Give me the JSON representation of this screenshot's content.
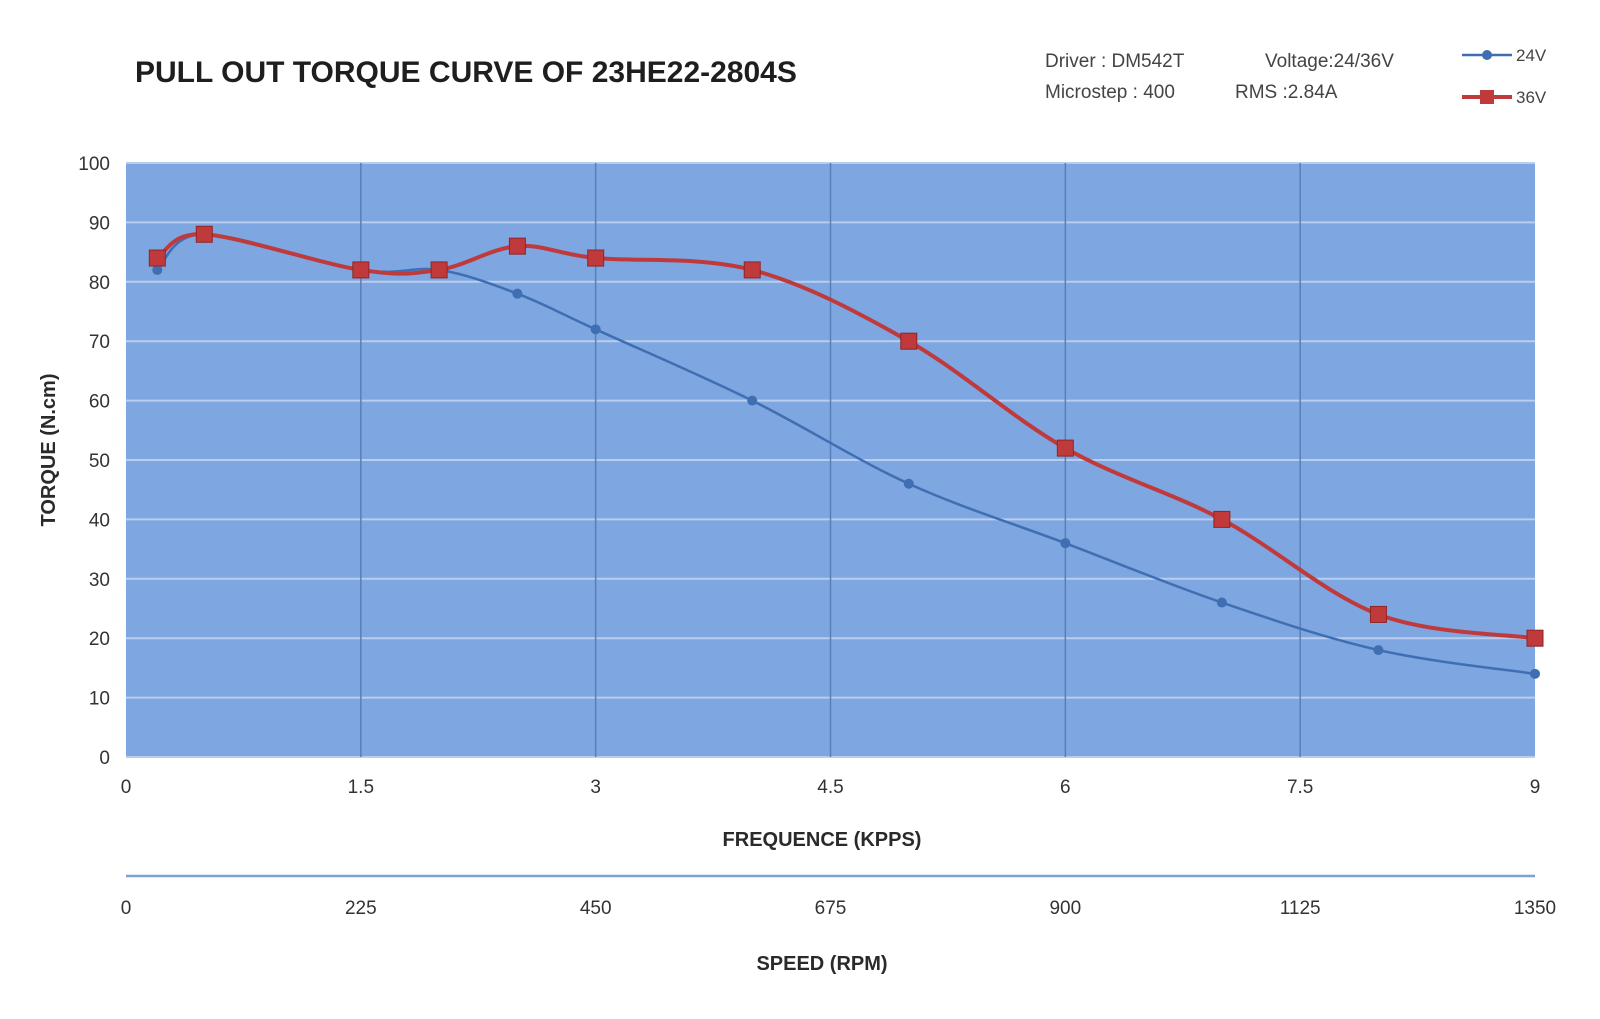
{
  "chart_data": {
    "type": "line",
    "title": "PULL OUT TORQUE CURVE OF 23HE22-2804S",
    "info": {
      "driver": "Driver : DM542T",
      "voltage": "Voltage:24/36V",
      "microstep": "Microstep : 400",
      "rms": "RMS :2.84A"
    },
    "xlabel": "FREQUENCE (KPPS)",
    "x2label": "SPEED (RPM)",
    "ylabel": "TORQUE (N.cm)",
    "xlim": [
      0,
      9
    ],
    "ylim": [
      0,
      100
    ],
    "x_ticks": [
      "0",
      "1.5",
      "3",
      "4.5",
      "6",
      "7.5",
      "9"
    ],
    "x2_ticks": [
      "0",
      "225",
      "450",
      "675",
      "900",
      "1125",
      "1350"
    ],
    "y_ticks": [
      "0",
      "10",
      "20",
      "30",
      "40",
      "50",
      "60",
      "70",
      "80",
      "90",
      "100"
    ],
    "grid": true,
    "legend_position": "top-right",
    "series": [
      {
        "name": "24V",
        "color": "#3f6fb2",
        "marker": "circle",
        "points": [
          [
            0.2,
            82
          ],
          [
            0.5,
            88
          ],
          [
            1.5,
            82
          ],
          [
            2.0,
            82
          ],
          [
            2.5,
            78
          ],
          [
            3.0,
            72
          ],
          [
            4.0,
            60
          ],
          [
            5.0,
            46
          ],
          [
            6.0,
            36
          ],
          [
            7.0,
            26
          ],
          [
            8.0,
            18
          ],
          [
            9.0,
            14
          ]
        ]
      },
      {
        "name": "36V",
        "color": "#c0393b",
        "marker": "square",
        "points": [
          [
            0.2,
            84
          ],
          [
            0.5,
            88
          ],
          [
            1.5,
            82
          ],
          [
            2.0,
            82
          ],
          [
            2.5,
            86
          ],
          [
            3.0,
            84
          ],
          [
            4.0,
            82
          ],
          [
            5.0,
            70
          ],
          [
            6.0,
            52
          ],
          [
            7.0,
            40
          ],
          [
            8.0,
            24
          ],
          [
            9.0,
            20
          ]
        ]
      }
    ],
    "colors": {
      "plot_background": "#7ea6e0",
      "grid_line": "#b9cdee",
      "vertical_grid": "#5b7fb5"
    }
  }
}
